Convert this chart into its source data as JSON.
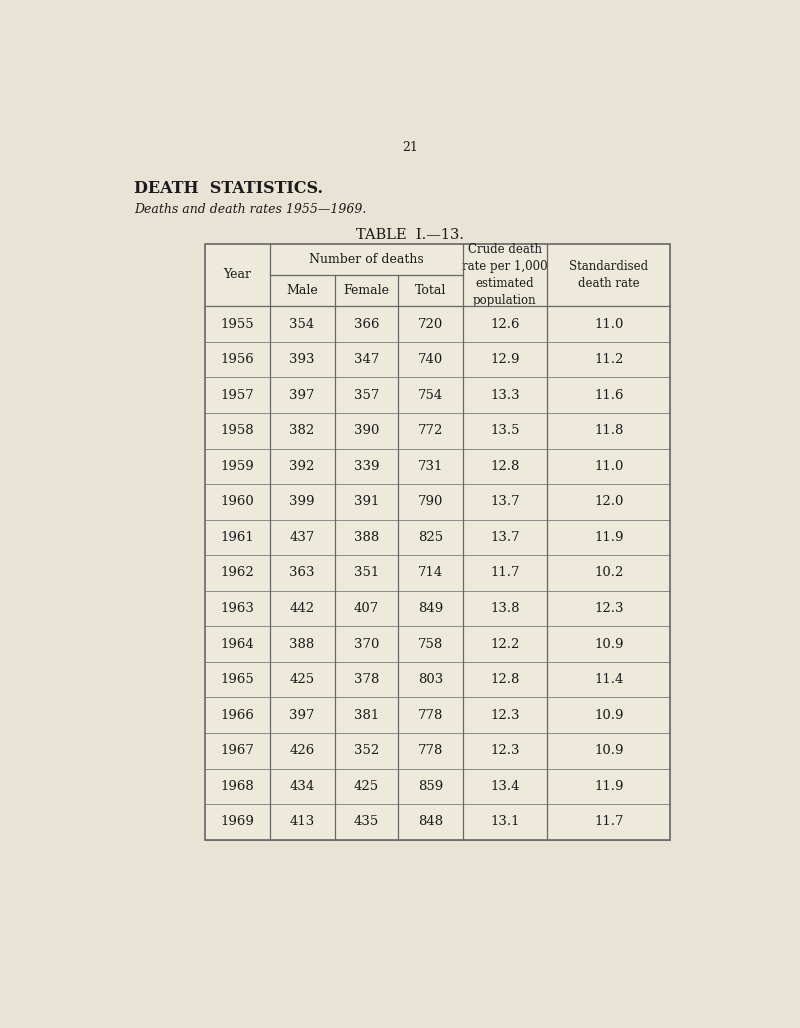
{
  "page_number": "21",
  "title1": "DEATH  STATISTICS.",
  "title2": "Deaths and death rates 1955—1969.",
  "table_title": "TABLE  I.—13.",
  "background_color": "#e8e3d5",
  "col_header1": "Number of deaths",
  "col_header2": "Crude death\nrate per 1,000\nestimated\npopulation",
  "col_header3": "Standardised\ndeath rate",
  "rows": [
    [
      "1955",
      "354",
      "366",
      "720",
      "12.6",
      "11.0"
    ],
    [
      "1956",
      "393",
      "347",
      "740",
      "12.9",
      "11.2"
    ],
    [
      "1957",
      "397",
      "357",
      "754",
      "13.3",
      "11.6"
    ],
    [
      "1958",
      "382",
      "390",
      "772",
      "13.5",
      "11.8"
    ],
    [
      "1959",
      "392",
      "339",
      "731",
      "12.8",
      "11.0"
    ],
    [
      "1960",
      "399",
      "391",
      "790",
      "13.7",
      "12.0"
    ],
    [
      "1961",
      "437",
      "388",
      "825",
      "13.7",
      "11.9"
    ],
    [
      "1962",
      "363",
      "351",
      "714",
      "11.7",
      "10.2"
    ],
    [
      "1963",
      "442",
      "407",
      "849",
      "13.8",
      "12.3"
    ],
    [
      "1964",
      "388",
      "370",
      "758",
      "12.2",
      "10.9"
    ],
    [
      "1965",
      "425",
      "378",
      "803",
      "12.8",
      "11.4"
    ],
    [
      "1966",
      "397",
      "381",
      "778",
      "12.3",
      "10.9"
    ],
    [
      "1967",
      "426",
      "352",
      "778",
      "12.3",
      "10.9"
    ],
    [
      "1968",
      "434",
      "425",
      "859",
      "13.4",
      "11.9"
    ],
    [
      "1969",
      "413",
      "435",
      "848",
      "13.1",
      "11.7"
    ]
  ],
  "text_color": "#1a1a1a",
  "table_bg": "#ede9db",
  "table_border_color": "#666666",
  "header_font_size": 9.0,
  "data_font_size": 9.5,
  "title1_fontsize": 11.5,
  "title2_fontsize": 9.0,
  "table_title_fontsize": 10.5,
  "page_num_fontsize": 9.0
}
